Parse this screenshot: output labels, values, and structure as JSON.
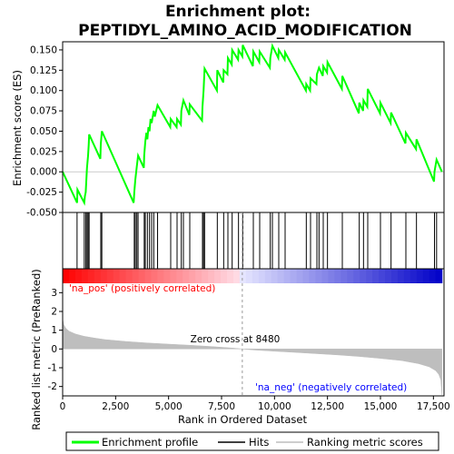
{
  "chart_data": {
    "type": "line",
    "title_line1": "Enrichment plot:",
    "title_line2": "PEPTIDYL_AMINO_ACID_MODIFICATION",
    "top_panel": {
      "ylabel": "Enrichment score (ES)",
      "ylim": [
        -0.05,
        0.16
      ],
      "yticks": [
        "-0.050",
        "-0.025",
        "0.000",
        "0.025",
        "0.050",
        "0.075",
        "0.100",
        "0.125",
        "0.150"
      ],
      "ytick_values": [
        -0.05,
        -0.025,
        0.0,
        0.025,
        0.05,
        0.075,
        0.1,
        0.125,
        0.15
      ]
    },
    "bottom_panel": {
      "ylabel": "Ranked list metric (PreRanked)",
      "ylim": [
        -2.5,
        3.5
      ],
      "yticks": [
        "-2",
        "-1",
        "0",
        "1",
        "2",
        "3"
      ],
      "ytick_values": [
        -2,
        -1,
        0,
        1,
        2,
        3
      ],
      "zero_cross_label": "Zero cross at 8480",
      "zero_cross": 8480,
      "pos_label": "'na_pos' (positively correlated)",
      "neg_label": "'na_neg' (negatively correlated)"
    },
    "xlabel": "Rank in Ordered Dataset",
    "xlim": [
      0,
      18000
    ],
    "xticks": [
      "0",
      "2,500",
      "5,000",
      "7,500",
      "10,000",
      "12,500",
      "15,000",
      "17,500"
    ],
    "xtick_values": [
      0,
      2500,
      5000,
      7500,
      10000,
      12500,
      15000,
      17500
    ],
    "n_genes": 17900,
    "hits": [
      680,
      1020,
      1090,
      1150,
      1200,
      1250,
      1800,
      1850,
      3380,
      3430,
      3500,
      3560,
      3850,
      3900,
      4000,
      4100,
      4200,
      4300,
      4480,
      5100,
      5400,
      5600,
      5700,
      6000,
      6600,
      6650,
      6700,
      7300,
      7600,
      7800,
      8000,
      8300,
      8500,
      9000,
      9300,
      9800,
      9900,
      10200,
      10500,
      11500,
      11700,
      12000,
      12100,
      12300,
      12500,
      13200,
      14000,
      14200,
      14400,
      15000,
      15500,
      16200,
      16700,
      17550,
      17650
    ],
    "es_points": [
      [
        0,
        0.0
      ],
      [
        680,
        -0.038
      ],
      [
        700,
        -0.022
      ],
      [
        1020,
        -0.038
      ],
      [
        1050,
        -0.03
      ],
      [
        1090,
        -0.025
      ],
      [
        1120,
        -0.01
      ],
      [
        1150,
        0.005
      ],
      [
        1200,
        0.02
      ],
      [
        1230,
        0.033
      ],
      [
        1250,
        0.046
      ],
      [
        1780,
        0.016
      ],
      [
        1800,
        0.034
      ],
      [
        1850,
        0.05
      ],
      [
        3350,
        -0.038
      ],
      [
        3380,
        -0.025
      ],
      [
        3430,
        -0.01
      ],
      [
        3500,
        0.007
      ],
      [
        3560,
        0.02
      ],
      [
        3830,
        0.005
      ],
      [
        3850,
        0.02
      ],
      [
        3900,
        0.037
      ],
      [
        3950,
        0.048
      ],
      [
        4000,
        0.04
      ],
      [
        4050,
        0.055
      ],
      [
        4100,
        0.05
      ],
      [
        4150,
        0.065
      ],
      [
        4200,
        0.06
      ],
      [
        4300,
        0.075
      ],
      [
        4350,
        0.068
      ],
      [
        4480,
        0.082
      ],
      [
        5080,
        0.055
      ],
      [
        5100,
        0.065
      ],
      [
        5380,
        0.055
      ],
      [
        5400,
        0.065
      ],
      [
        5580,
        0.058
      ],
      [
        5600,
        0.075
      ],
      [
        5700,
        0.088
      ],
      [
        5980,
        0.07
      ],
      [
        6000,
        0.083
      ],
      [
        6580,
        0.063
      ],
      [
        6600,
        0.08
      ],
      [
        6650,
        0.1
      ],
      [
        6700,
        0.127
      ],
      [
        7280,
        0.1
      ],
      [
        7300,
        0.125
      ],
      [
        7580,
        0.11
      ],
      [
        7600,
        0.125
      ],
      [
        7780,
        0.12
      ],
      [
        7800,
        0.14
      ],
      [
        7980,
        0.132
      ],
      [
        8000,
        0.15
      ],
      [
        8280,
        0.138
      ],
      [
        8300,
        0.15
      ],
      [
        8480,
        0.142
      ],
      [
        8500,
        0.156
      ],
      [
        8980,
        0.13
      ],
      [
        9000,
        0.148
      ],
      [
        9280,
        0.135
      ],
      [
        9300,
        0.148
      ],
      [
        9780,
        0.128
      ],
      [
        9800,
        0.14
      ],
      [
        9900,
        0.155
      ],
      [
        10180,
        0.14
      ],
      [
        10200,
        0.15
      ],
      [
        10480,
        0.138
      ],
      [
        10500,
        0.147
      ],
      [
        11480,
        0.1
      ],
      [
        11500,
        0.108
      ],
      [
        11680,
        0.1
      ],
      [
        11700,
        0.115
      ],
      [
        11980,
        0.108
      ],
      [
        12000,
        0.12
      ],
      [
        12100,
        0.128
      ],
      [
        12280,
        0.118
      ],
      [
        12300,
        0.13
      ],
      [
        12480,
        0.122
      ],
      [
        12500,
        0.135
      ],
      [
        13180,
        0.102
      ],
      [
        13200,
        0.118
      ],
      [
        13980,
        0.072
      ],
      [
        14000,
        0.085
      ],
      [
        14180,
        0.075
      ],
      [
        14200,
        0.088
      ],
      [
        14380,
        0.08
      ],
      [
        14400,
        0.102
      ],
      [
        14980,
        0.072
      ],
      [
        15000,
        0.085
      ],
      [
        15480,
        0.06
      ],
      [
        15500,
        0.073
      ],
      [
        16180,
        0.035
      ],
      [
        16200,
        0.048
      ],
      [
        16680,
        0.028
      ],
      [
        16700,
        0.04
      ],
      [
        17530,
        -0.012
      ],
      [
        17550,
        0.0
      ],
      [
        17650,
        0.015
      ],
      [
        17900,
        0.0
      ]
    ],
    "metric_points": [
      [
        0,
        1.6
      ],
      [
        50,
        1.3
      ],
      [
        150,
        1.1
      ],
      [
        300,
        0.95
      ],
      [
        600,
        0.8
      ],
      [
        1000,
        0.68
      ],
      [
        1500,
        0.58
      ],
      [
        2000,
        0.5
      ],
      [
        3000,
        0.4
      ],
      [
        4000,
        0.32
      ],
      [
        5000,
        0.26
      ],
      [
        6000,
        0.2
      ],
      [
        7000,
        0.13
      ],
      [
        8000,
        0.05
      ],
      [
        8480,
        0.0
      ],
      [
        9000,
        -0.05
      ],
      [
        10000,
        -0.12
      ],
      [
        11000,
        -0.18
      ],
      [
        12000,
        -0.25
      ],
      [
        13000,
        -0.32
      ],
      [
        14000,
        -0.4
      ],
      [
        15000,
        -0.5
      ],
      [
        16000,
        -0.62
      ],
      [
        16800,
        -0.78
      ],
      [
        17300,
        -0.95
      ],
      [
        17600,
        -1.15
      ],
      [
        17750,
        -1.35
      ],
      [
        17850,
        -1.65
      ],
      [
        17900,
        -2.45
      ]
    ],
    "colors": {
      "es_line": "#00ff00",
      "hits": "#000000",
      "metric_fill": "#bebebe",
      "zero_line": "#999999"
    },
    "legend": {
      "placement": "bottom",
      "items": [
        "Enrichment profile",
        "Hits",
        "Ranking metric scores"
      ]
    }
  }
}
